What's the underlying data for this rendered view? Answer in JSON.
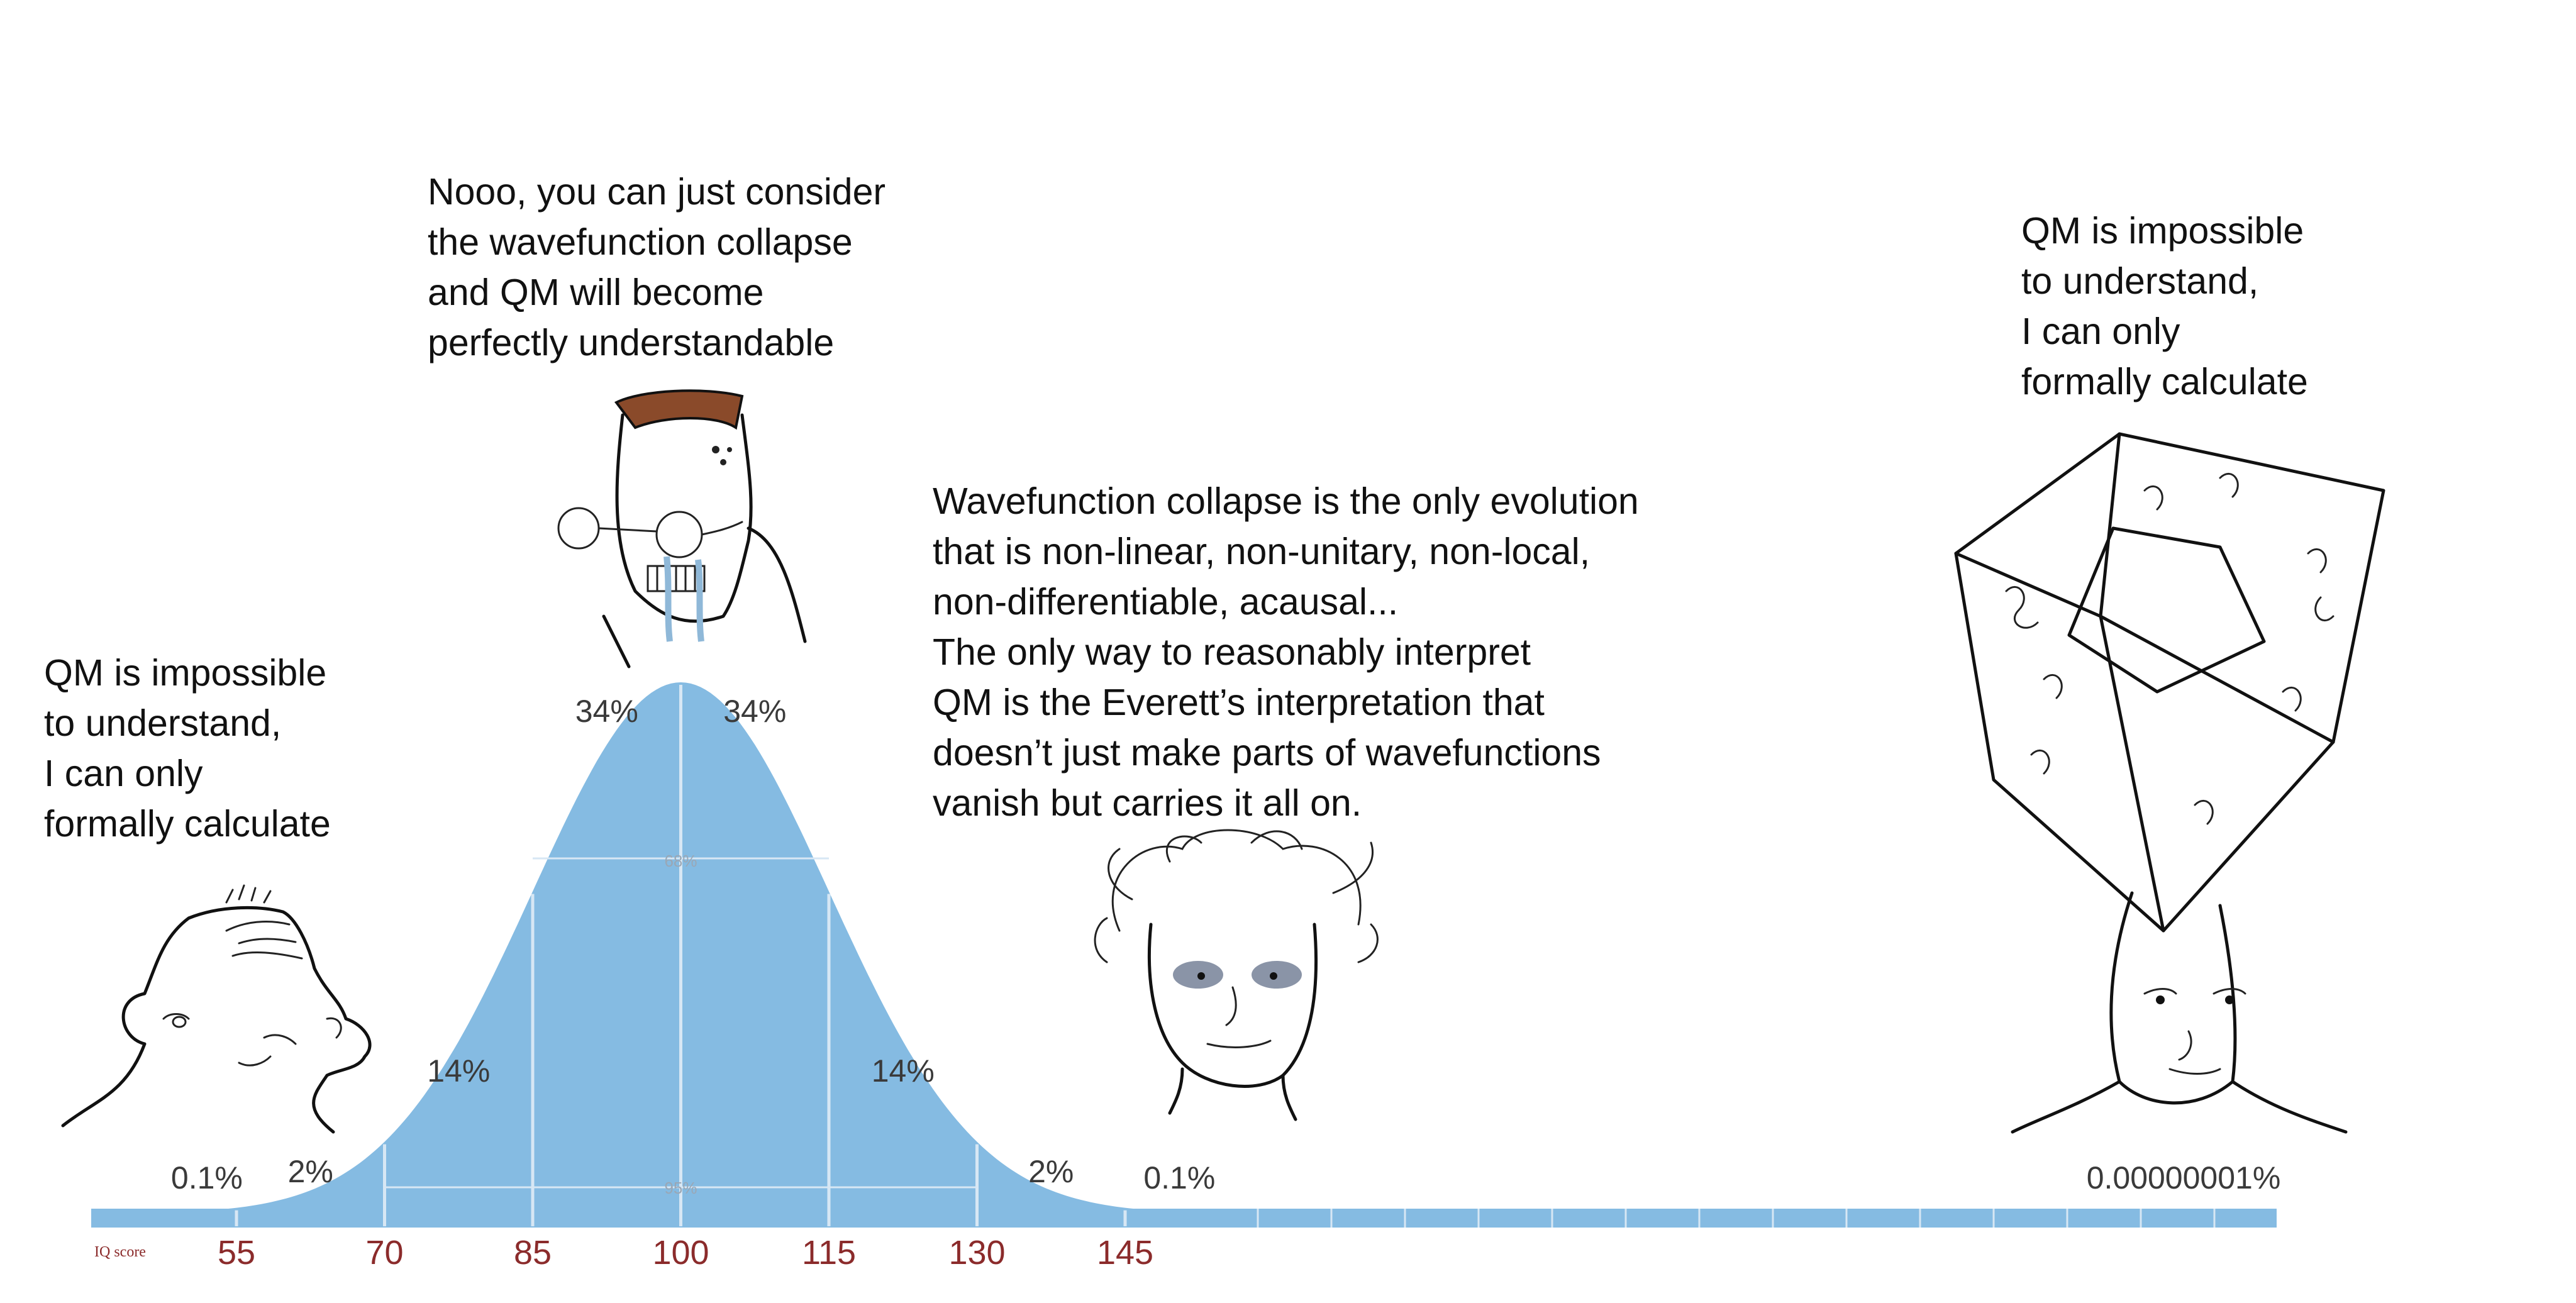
{
  "captions": {
    "left": [
      "QM is impossible",
      "to understand,",
      "I can only",
      "formally calculate"
    ],
    "midwit": [
      "Nooo, you can just consider",
      "the wavefunction collapse",
      "and QM will become",
      "perfectly understandable"
    ],
    "everett": [
      "Wavefunction collapse is the only evolution",
      "that is non-linear, non-unitary, non-local,",
      "non-differentiable, acausal...",
      "The only way to reasonably interpret",
      "QM is the Everett’s interpretation that",
      "doesn’t just make parts of wavefunctions",
      "vanish but carries it all on."
    ],
    "right": [
      "QM is impossible",
      "to understand,",
      "I can only",
      "formally calculate"
    ]
  },
  "chart_data": {
    "type": "area",
    "distribution": "normal",
    "mean": 100,
    "sd": 15,
    "x_axis_label": "IQ score",
    "ticks": [
      55,
      70,
      85,
      100,
      115,
      130,
      145
    ],
    "band_labels": [
      {
        "x": 52,
        "text": "0.1%"
      },
      {
        "x": 62.5,
        "text": "2%"
      },
      {
        "x": 77.5,
        "text": "14%"
      },
      {
        "x": 92.5,
        "text": "34%"
      },
      {
        "x": 107.5,
        "text": "34%"
      },
      {
        "x": 122.5,
        "text": "14%"
      },
      {
        "x": 137.5,
        "text": "2%"
      },
      {
        "x": 150.5,
        "text": "0.1%"
      }
    ],
    "inner_labels": [
      "68%",
      "95%"
    ],
    "far_right_label": "0.00000001%",
    "fill_color": "#85bbe2",
    "divider_color": "#d7e7f4",
    "tick_color": "#8b2b2b"
  },
  "characters": {
    "left": "wojak-icon",
    "midwit": "crying-nerd-wojak-icon",
    "everett": "wild-haired-wojak-icon",
    "right": "tesseract-brain-wojak-icon"
  }
}
